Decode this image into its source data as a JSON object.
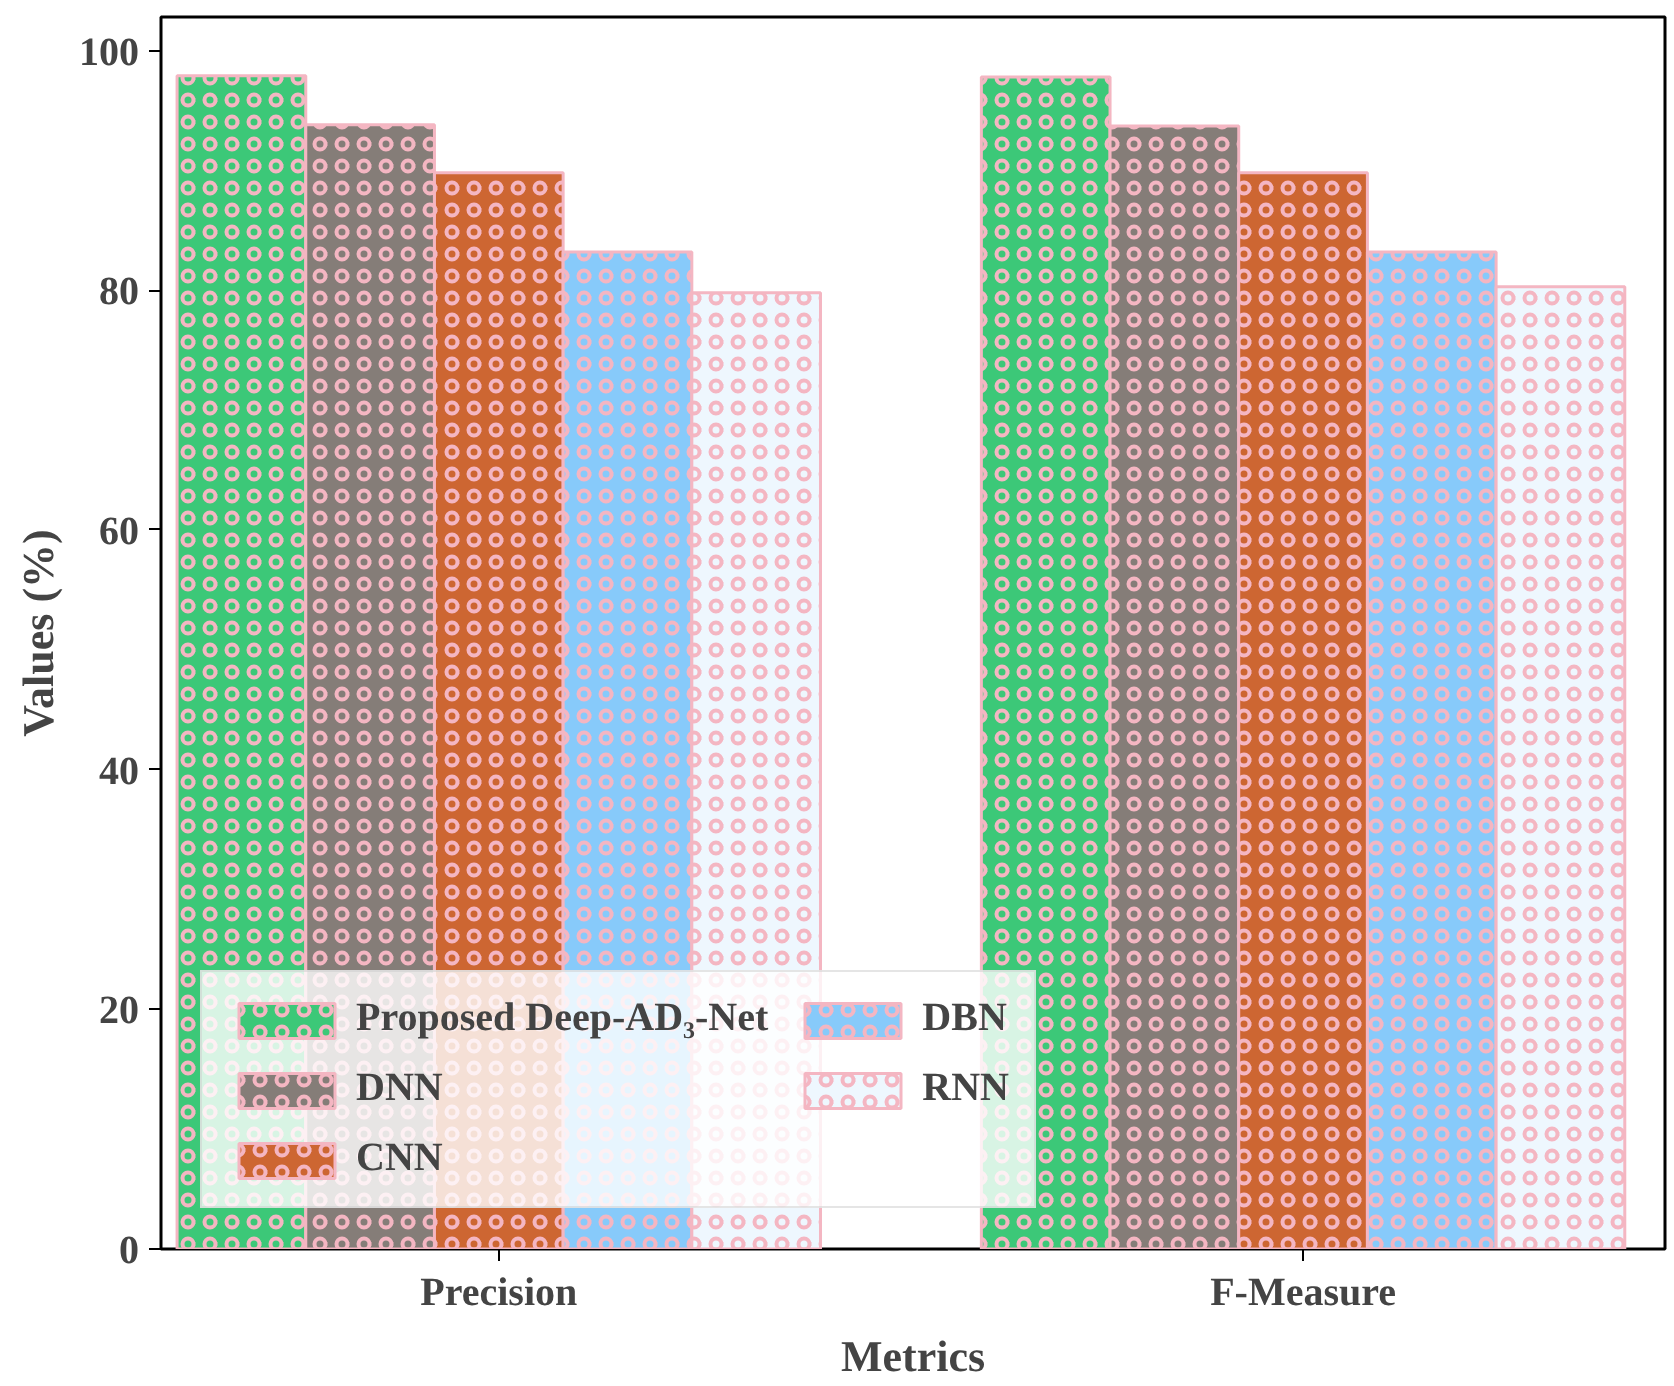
{
  "chart_data": {
    "type": "bar",
    "xlabel": "Metrics",
    "ylabel": "Values (%)",
    "categories": [
      "Precision",
      "F-Measure"
    ],
    "series": [
      {
        "name": "Proposed Deep-AD₃-Net",
        "color": "#3cc878",
        "values": [
          97.9,
          97.8
        ]
      },
      {
        "name": "DNN",
        "color": "#857d78",
        "values": [
          93.8,
          93.7
        ]
      },
      {
        "name": "CNN",
        "color": "#cd6632",
        "values": [
          89.8,
          89.8
        ]
      },
      {
        "name": "DBN",
        "color": "#87cafa",
        "values": [
          83.2,
          83.2
        ]
      },
      {
        "name": "RNN",
        "color": "#eef7fe",
        "values": [
          79.8,
          80.3
        ]
      }
    ],
    "ylim": [
      0,
      102.8
    ],
    "yticks": [
      0,
      20,
      40,
      60,
      80,
      100
    ],
    "grid": false,
    "legend": "bottom left"
  }
}
